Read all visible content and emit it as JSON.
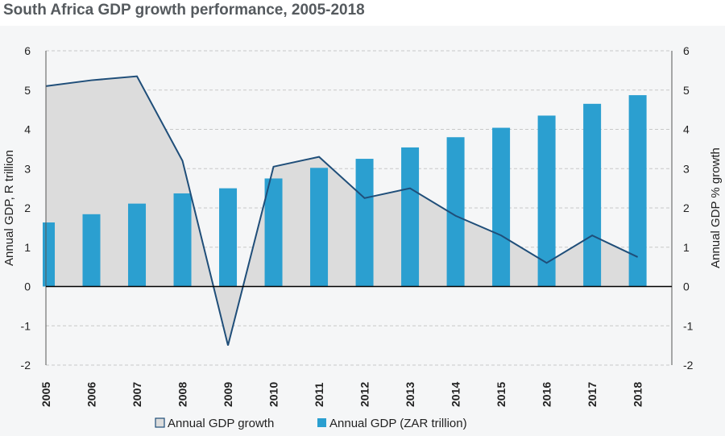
{
  "page_title": "South Africa GDP growth performance, 2005-2018",
  "colors": {
    "bar": "#2b9fd0",
    "line": "#1f4e79",
    "area": "#dcdcdc",
    "grid": "#c8c8c8",
    "axis": "#555555",
    "text": "#222222",
    "title": "#555a5e"
  },
  "chart_data": {
    "type": "bar",
    "title": "South Africa GDP growth performance, 2005-2018",
    "categories": [
      "2005",
      "2006",
      "2007",
      "2008",
      "2009",
      "2010",
      "2011",
      "2012",
      "2013",
      "2014",
      "2015",
      "2016",
      "2017",
      "2018"
    ],
    "series": [
      {
        "name": "Annual GDP growth",
        "type": "area",
        "axis": "right",
        "values": [
          5.1,
          5.25,
          5.35,
          3.2,
          -1.5,
          3.05,
          3.3,
          2.25,
          2.5,
          1.8,
          1.3,
          0.6,
          1.3,
          0.75
        ]
      },
      {
        "name": "Annual GDP (ZAR trillion)",
        "type": "bar",
        "axis": "left",
        "values": [
          1.63,
          1.84,
          2.11,
          2.37,
          2.5,
          2.75,
          3.02,
          3.25,
          3.54,
          3.8,
          4.04,
          4.35,
          4.65,
          4.87
        ]
      }
    ],
    "ylabel": "Annual GDP, R trillion",
    "y2label": "Annual GDP % growth",
    "xlabel": "",
    "ylim": [
      -2,
      6
    ],
    "y2lim": [
      -2,
      6
    ],
    "yticks": [
      "-2",
      "-1",
      "0",
      "1",
      "2",
      "3",
      "4",
      "5",
      "6"
    ],
    "y2ticks": [
      "-2",
      "-1",
      "0",
      "1",
      "2",
      "3",
      "4",
      "5",
      "6"
    ],
    "grid": "horizontal-dashed",
    "legend_position": "bottom"
  }
}
